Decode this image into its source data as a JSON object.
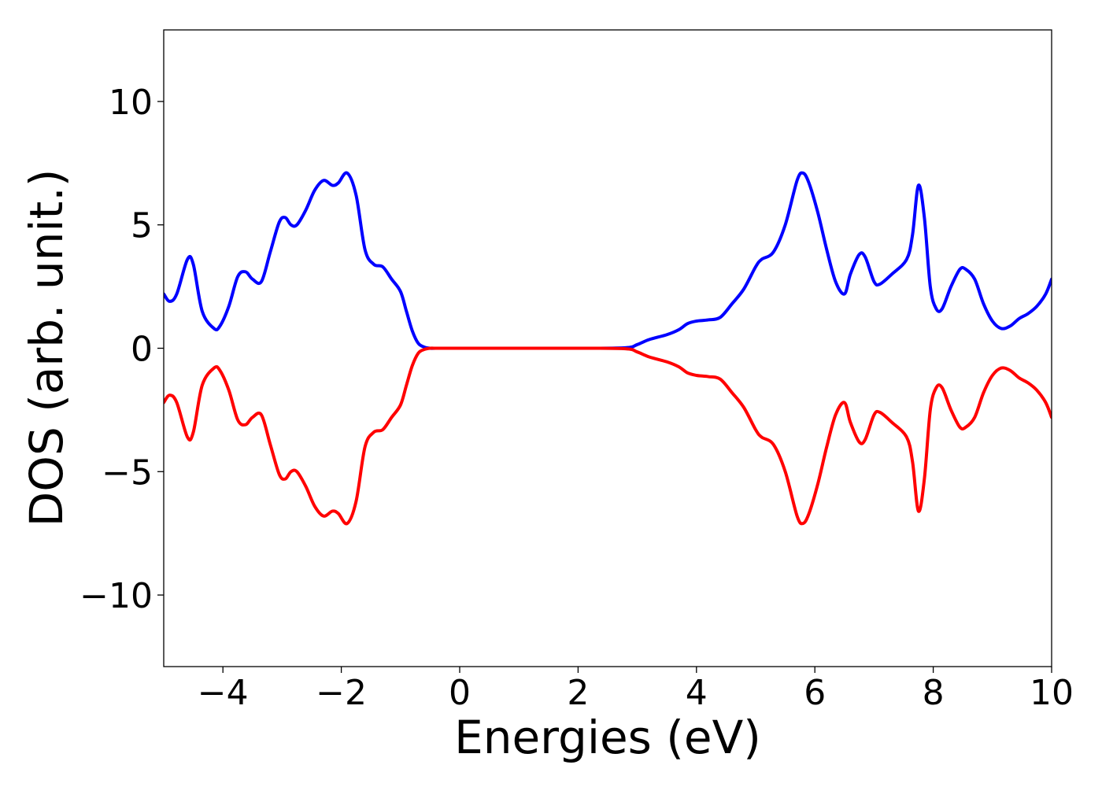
{
  "chart_data": {
    "type": "line",
    "title": "",
    "xlabel": "Energies (eV)",
    "ylabel": "DOS (arb. unit.)",
    "xlim": [
      -5,
      10
    ],
    "ylim": [
      -12.9,
      12.9
    ],
    "x_ticks": [
      -4,
      -2,
      0,
      2,
      4,
      6,
      8,
      10
    ],
    "x_tick_labels": [
      "−4",
      "−2",
      "0",
      "2",
      "4",
      "6",
      "8",
      "10"
    ],
    "y_ticks": [
      10,
      5,
      0,
      -5,
      -10
    ],
    "y_tick_labels": [
      "10",
      "5",
      "0",
      "−5",
      "−10"
    ],
    "grid": false,
    "legend": "none",
    "series": [
      {
        "color": "#0000ff",
        "x": [
          -5.0,
          -4.9,
          -4.78,
          -4.6,
          -4.5,
          -4.35,
          -4.15,
          -4.05,
          -3.9,
          -3.75,
          -3.62,
          -3.5,
          -3.35,
          -3.2,
          -3.05,
          -2.95,
          -2.85,
          -2.75,
          -2.6,
          -2.45,
          -2.3,
          -2.15,
          -2.05,
          -1.9,
          -1.75,
          -1.6,
          -1.45,
          -1.3,
          -1.15,
          -1.0,
          -0.9,
          -0.8,
          -0.7,
          -0.6,
          -0.5,
          -0.4,
          0.0,
          1.0,
          2.0,
          2.8,
          3.0,
          3.2,
          3.5,
          3.7,
          3.85,
          4.0,
          4.2,
          4.4,
          4.6,
          4.8,
          5.0,
          5.1,
          5.3,
          5.5,
          5.7,
          5.8,
          5.9,
          6.05,
          6.2,
          6.35,
          6.5,
          6.6,
          6.75,
          6.85,
          7.0,
          7.1,
          7.3,
          7.55,
          7.65,
          7.75,
          7.85,
          7.95,
          8.05,
          8.15,
          8.3,
          8.45,
          8.55,
          8.7,
          8.85,
          9.0,
          9.15,
          9.3,
          9.45,
          9.6,
          9.75,
          9.9,
          10.0
        ],
        "y": [
          2.2,
          1.9,
          2.2,
          3.6,
          3.4,
          1.5,
          0.8,
          0.9,
          1.7,
          2.9,
          3.1,
          2.8,
          2.7,
          3.9,
          5.1,
          5.3,
          5.0,
          5.0,
          5.6,
          6.4,
          6.8,
          6.6,
          6.7,
          7.1,
          6.2,
          4.0,
          3.4,
          3.3,
          2.8,
          2.3,
          1.5,
          0.7,
          0.2,
          0.05,
          0.0,
          0.0,
          0.0,
          0.0,
          0.0,
          0.02,
          0.15,
          0.35,
          0.55,
          0.75,
          1.0,
          1.1,
          1.15,
          1.25,
          1.8,
          2.4,
          3.3,
          3.6,
          3.9,
          5.0,
          6.8,
          7.1,
          6.7,
          5.5,
          4.0,
          2.7,
          2.2,
          3.0,
          3.8,
          3.7,
          2.7,
          2.6,
          3.0,
          3.6,
          4.6,
          6.6,
          5.3,
          2.5,
          1.6,
          1.6,
          2.5,
          3.2,
          3.2,
          2.8,
          1.8,
          1.1,
          0.8,
          0.9,
          1.2,
          1.4,
          1.7,
          2.2,
          2.8
        ]
      },
      {
        "color": "#ff0000",
        "x": [
          -5.0,
          -4.9,
          -4.78,
          -4.6,
          -4.5,
          -4.35,
          -4.15,
          -4.05,
          -3.9,
          -3.75,
          -3.62,
          -3.5,
          -3.35,
          -3.2,
          -3.05,
          -2.95,
          -2.85,
          -2.75,
          -2.6,
          -2.45,
          -2.3,
          -2.15,
          -2.05,
          -1.9,
          -1.75,
          -1.6,
          -1.45,
          -1.3,
          -1.15,
          -1.0,
          -0.9,
          -0.8,
          -0.7,
          -0.6,
          -0.5,
          -0.4,
          0.0,
          1.0,
          2.0,
          2.8,
          3.0,
          3.2,
          3.5,
          3.7,
          3.85,
          4.0,
          4.2,
          4.4,
          4.6,
          4.8,
          5.0,
          5.1,
          5.3,
          5.5,
          5.7,
          5.8,
          5.9,
          6.05,
          6.2,
          6.35,
          6.5,
          6.6,
          6.75,
          6.85,
          7.0,
          7.1,
          7.3,
          7.55,
          7.65,
          7.75,
          7.85,
          7.95,
          8.05,
          8.15,
          8.3,
          8.45,
          8.55,
          8.7,
          8.85,
          9.0,
          9.15,
          9.3,
          9.45,
          9.6,
          9.75,
          9.9,
          10.0
        ],
        "y": [
          -2.2,
          -1.9,
          -2.2,
          -3.6,
          -3.4,
          -1.5,
          -0.8,
          -0.9,
          -1.7,
          -2.9,
          -3.1,
          -2.8,
          -2.7,
          -3.9,
          -5.1,
          -5.3,
          -5.0,
          -5.0,
          -5.6,
          -6.4,
          -6.8,
          -6.6,
          -6.7,
          -7.1,
          -6.2,
          -4.0,
          -3.4,
          -3.3,
          -2.8,
          -2.3,
          -1.5,
          -0.7,
          -0.2,
          -0.05,
          0.0,
          0.0,
          0.0,
          0.0,
          0.0,
          -0.02,
          -0.15,
          -0.35,
          -0.55,
          -0.75,
          -1.0,
          -1.1,
          -1.15,
          -1.25,
          -1.8,
          -2.4,
          -3.3,
          -3.6,
          -3.9,
          -5.0,
          -6.8,
          -7.1,
          -6.7,
          -5.5,
          -4.0,
          -2.7,
          -2.2,
          -3.0,
          -3.8,
          -3.7,
          -2.7,
          -2.6,
          -3.0,
          -3.6,
          -4.6,
          -6.6,
          -5.3,
          -2.5,
          -1.6,
          -1.6,
          -2.5,
          -3.2,
          -3.2,
          -2.8,
          -1.8,
          -1.1,
          -0.8,
          -0.9,
          -1.2,
          -1.4,
          -1.7,
          -2.2,
          -2.8
        ]
      }
    ]
  }
}
